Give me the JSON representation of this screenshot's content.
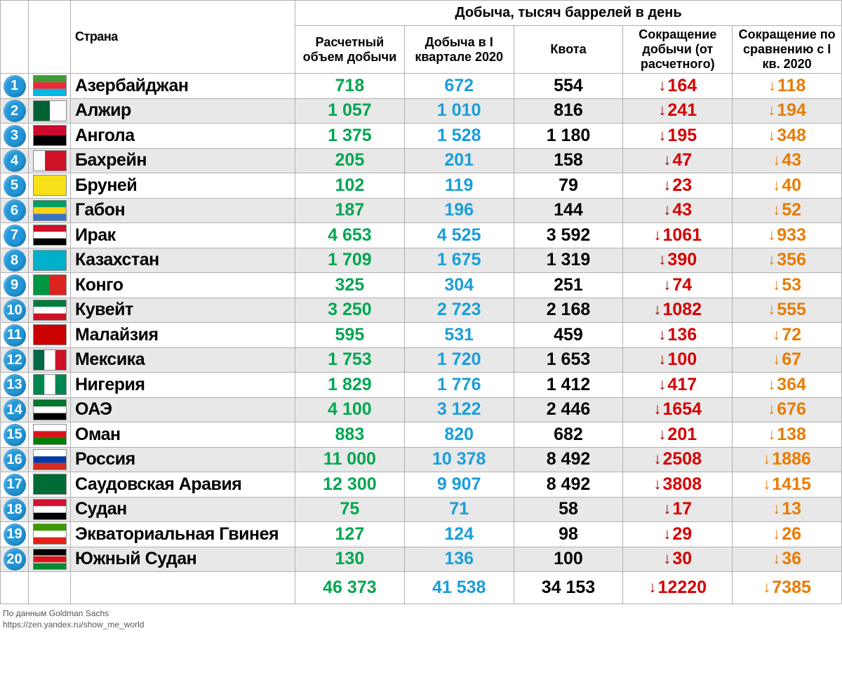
{
  "header": {
    "country": "Страна",
    "main": "Добыча, тысяч баррелей  в день",
    "col1": "Расчетный объем добычи",
    "col2": "Добыча в I квартале 2020",
    "col3": "Квота",
    "col4": "Сокращение добычи (от расчетного)",
    "col5": "Сокращение по сравнению с I кв. 2020"
  },
  "colors": {
    "green": "#00a651",
    "blue": "#1a9dd9",
    "black": "#000000",
    "red": "#d40000",
    "orange": "#e87b00",
    "arrow_red": "#a00000",
    "badge_bg": "#2196d8",
    "row_alt": "#e8e8e8",
    "border": "#b0b0b0"
  },
  "rows": [
    {
      "n": "1",
      "flag": "az",
      "country": "Азербайджан",
      "v1": "718",
      "v2": "672",
      "v3": "554",
      "v4": "164",
      "v5": "118"
    },
    {
      "n": "2",
      "flag": "dz",
      "country": "Алжир",
      "v1": "1 057",
      "v2": "1 010",
      "v3": "816",
      "v4": "241",
      "v5": "194"
    },
    {
      "n": "3",
      "flag": "ao",
      "country": "Ангола",
      "v1": "1 375",
      "v2": "1 528",
      "v3": "1 180",
      "v4": "195",
      "v5": "348"
    },
    {
      "n": "4",
      "flag": "bh",
      "country": "Бахрейн",
      "v1": "205",
      "v2": "201",
      "v3": "158",
      "v4": "47",
      "v5": "43"
    },
    {
      "n": "5",
      "flag": "bn",
      "country": "Бруней",
      "v1": "102",
      "v2": "119",
      "v3": "79",
      "v4": "23",
      "v5": "40"
    },
    {
      "n": "6",
      "flag": "ga",
      "country": "Габон",
      "v1": "187",
      "v2": "196",
      "v3": "144",
      "v4": "43",
      "v5": "52"
    },
    {
      "n": "7",
      "flag": "iq",
      "country": "Ирак",
      "v1": "4 653",
      "v2": "4 525",
      "v3": "3 592",
      "v4": "1061",
      "v5": "933"
    },
    {
      "n": "8",
      "flag": "kz",
      "country": "Казахстан",
      "v1": "1 709",
      "v2": "1 675",
      "v3": "1 319",
      "v4": "390",
      "v5": "356"
    },
    {
      "n": "9",
      "flag": "cg",
      "country": "Конго",
      "v1": "325",
      "v2": "304",
      "v3": "251",
      "v4": "74",
      "v5": "53"
    },
    {
      "n": "10",
      "flag": "kw",
      "country": "Кувейт",
      "v1": "3 250",
      "v2": "2 723",
      "v3": "2 168",
      "v4": "1082",
      "v5": "555"
    },
    {
      "n": "11",
      "flag": "my",
      "country": "Малайзия",
      "v1": "595",
      "v2": "531",
      "v3": "459",
      "v4": "136",
      "v5": "72"
    },
    {
      "n": "12",
      "flag": "mx",
      "country": "Мексика",
      "v1": "1 753",
      "v2": "1 720",
      "v3": "1 653",
      "v4": "100",
      "v5": "67"
    },
    {
      "n": "13",
      "flag": "ng",
      "country": "Нигерия",
      "v1": "1 829",
      "v2": "1 776",
      "v3": "1 412",
      "v4": "417",
      "v5": "364"
    },
    {
      "n": "14",
      "flag": "ae",
      "country": "ОАЭ",
      "v1": "4 100",
      "v2": "3 122",
      "v3": "2 446",
      "v4": "1654",
      "v5": "676"
    },
    {
      "n": "15",
      "flag": "om",
      "country": "Оман",
      "v1": "883",
      "v2": "820",
      "v3": "682",
      "v4": "201",
      "v5": "138"
    },
    {
      "n": "16",
      "flag": "ru",
      "country": "Россия",
      "v1": "11 000",
      "v2": "10 378",
      "v3": "8 492",
      "v4": "2508",
      "v5": "1886"
    },
    {
      "n": "17",
      "flag": "sa",
      "country": "Саудовская Аравия",
      "v1": "12 300",
      "v2": "9 907",
      "v3": "8 492",
      "v4": "3808",
      "v5": "1415"
    },
    {
      "n": "18",
      "flag": "sd",
      "country": "Судан",
      "v1": "75",
      "v2": "71",
      "v3": "58",
      "v4": "17",
      "v5": "13"
    },
    {
      "n": "19",
      "flag": "gq",
      "country": "Экваториальная Гвинея",
      "v1": "127",
      "v2": "124",
      "v3": "98",
      "v4": "29",
      "v5": "26"
    },
    {
      "n": "20",
      "flag": "ss",
      "country": "Южный Судан",
      "v1": "130",
      "v2": "136",
      "v3": "100",
      "v4": "30",
      "v5": "36"
    }
  ],
  "totals": {
    "v1": "46 373",
    "v2": "41 538",
    "v3": "34 153",
    "v4": "12220",
    "v5": "7385"
  },
  "flags": {
    "az": [
      [
        "#3f9c35",
        0,
        33.3
      ],
      [
        "#ed2939",
        33.3,
        33.4
      ],
      [
        "#00b9e4",
        66.7,
        33.3
      ]
    ],
    "dz": [
      [
        "#006233",
        0,
        50,
        "v"
      ],
      [
        "#ffffff",
        50,
        50,
        "v"
      ]
    ],
    "ao": [
      [
        "#cc092f",
        0,
        50
      ],
      [
        "#000000",
        50,
        50
      ]
    ],
    "bh": [
      [
        "#ffffff",
        0,
        35,
        "v"
      ],
      [
        "#ce1126",
        35,
        65,
        "v"
      ]
    ],
    "bn": [
      [
        "#f7e017",
        0,
        100
      ]
    ],
    "ga": [
      [
        "#009e60",
        0,
        33.3
      ],
      [
        "#fcd116",
        33.3,
        33.4
      ],
      [
        "#3a75c4",
        66.7,
        33.3
      ]
    ],
    "iq": [
      [
        "#ce1126",
        0,
        33.3
      ],
      [
        "#ffffff",
        33.3,
        33.4
      ],
      [
        "#000000",
        66.7,
        33.3
      ]
    ],
    "kz": [
      [
        "#00afca",
        0,
        100
      ]
    ],
    "cg": [
      [
        "#009543",
        0,
        50,
        "v"
      ],
      [
        "#dc241f",
        50,
        50,
        "v"
      ]
    ],
    "kw": [
      [
        "#007a3d",
        0,
        33.3
      ],
      [
        "#ffffff",
        33.3,
        33.4
      ],
      [
        "#ce1126",
        66.7,
        33.3
      ]
    ],
    "my": [
      [
        "#cc0001",
        0,
        100
      ]
    ],
    "mx": [
      [
        "#006847",
        0,
        33.3,
        "v"
      ],
      [
        "#ffffff",
        33.3,
        33.4,
        "v"
      ],
      [
        "#ce1126",
        66.7,
        33.3,
        "v"
      ]
    ],
    "ng": [
      [
        "#008751",
        0,
        33.3,
        "v"
      ],
      [
        "#ffffff",
        33.3,
        33.4,
        "v"
      ],
      [
        "#008751",
        66.7,
        33.3,
        "v"
      ]
    ],
    "ae": [
      [
        "#00732f",
        0,
        33.3
      ],
      [
        "#ffffff",
        33.3,
        33.4
      ],
      [
        "#000000",
        66.7,
        33.3
      ]
    ],
    "om": [
      [
        "#ffffff",
        0,
        33.3
      ],
      [
        "#db161b",
        33.3,
        33.4
      ],
      [
        "#008000",
        66.7,
        33.3
      ]
    ],
    "ru": [
      [
        "#ffffff",
        0,
        33.3
      ],
      [
        "#0039a6",
        33.3,
        33.4
      ],
      [
        "#d52b1e",
        66.7,
        33.3
      ]
    ],
    "sa": [
      [
        "#006c35",
        0,
        100
      ]
    ],
    "sd": [
      [
        "#d21034",
        0,
        33.3
      ],
      [
        "#ffffff",
        33.3,
        33.4
      ],
      [
        "#000000",
        66.7,
        33.3
      ]
    ],
    "gq": [
      [
        "#3e9a00",
        0,
        33.3
      ],
      [
        "#ffffff",
        33.3,
        33.4
      ],
      [
        "#e32118",
        66.7,
        33.3
      ]
    ],
    "ss": [
      [
        "#000000",
        0,
        30
      ],
      [
        "#da121a",
        35,
        30
      ],
      [
        "#078930",
        70,
        30
      ]
    ]
  },
  "footer": {
    "line1": "По данным Goldman Sachs",
    "line2": "https://zen.yandex.ru/show_me_world"
  }
}
